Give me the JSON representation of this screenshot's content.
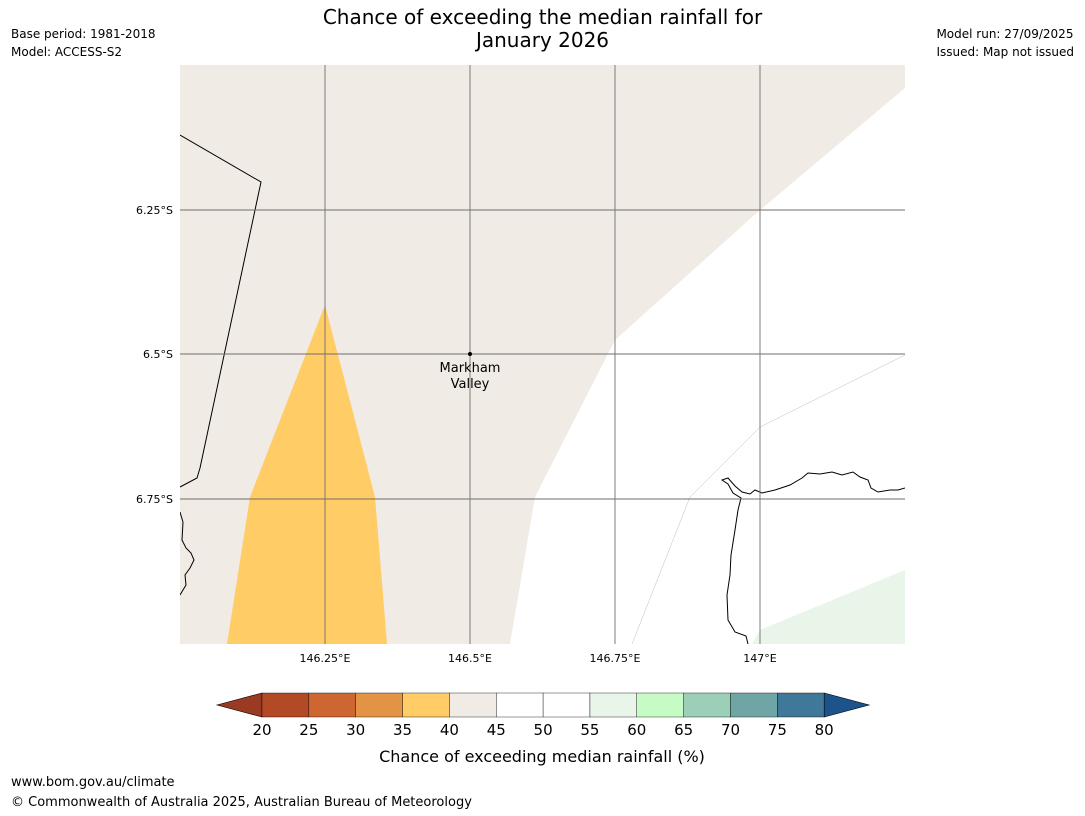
{
  "header": {
    "title_line1": "Chance of exceeding the median rainfall for",
    "title_line2": "January 2026",
    "base_period": "Base period: 1981-2018",
    "model": "Model: ACCESS-S2",
    "model_run": "Model run: 27/09/2025",
    "issued": "Issued: Map not issued"
  },
  "map": {
    "lat_labels": [
      "6.25°S",
      "6.5°S",
      "6.75°S"
    ],
    "lon_labels": [
      "146.25°E",
      "146.5°E",
      "146.75°E",
      "147°E"
    ],
    "place": {
      "name_line1": "Markham",
      "name_line2": "Valley"
    },
    "zone_colors": {
      "40_45": "#f0ebe5",
      "35_40": "#ffcc66",
      "45_55": "#ffffff",
      "55_60": "#eaf5e9"
    }
  },
  "colorbar": {
    "ticks": [
      "20",
      "25",
      "30",
      "35",
      "40",
      "45",
      "50",
      "55",
      "60",
      "65",
      "70",
      "75",
      "80"
    ],
    "colors": [
      "#9b3a23",
      "#b24a25",
      "#cd6631",
      "#e39344",
      "#ffcc66",
      "#f0ebe5",
      "#ffffff",
      "#ffffff",
      "#eaf5e9",
      "#c6fbc6",
      "#9ccfb7",
      "#6fa6a5",
      "#3f7899",
      "#1b538a"
    ],
    "label": "Chance of exceeding median rainfall (%)"
  },
  "footer": {
    "url": "www.bom.gov.au/climate",
    "copyright": "© Commonwealth of Australia 2025, Australian Bureau of Meteorology"
  }
}
